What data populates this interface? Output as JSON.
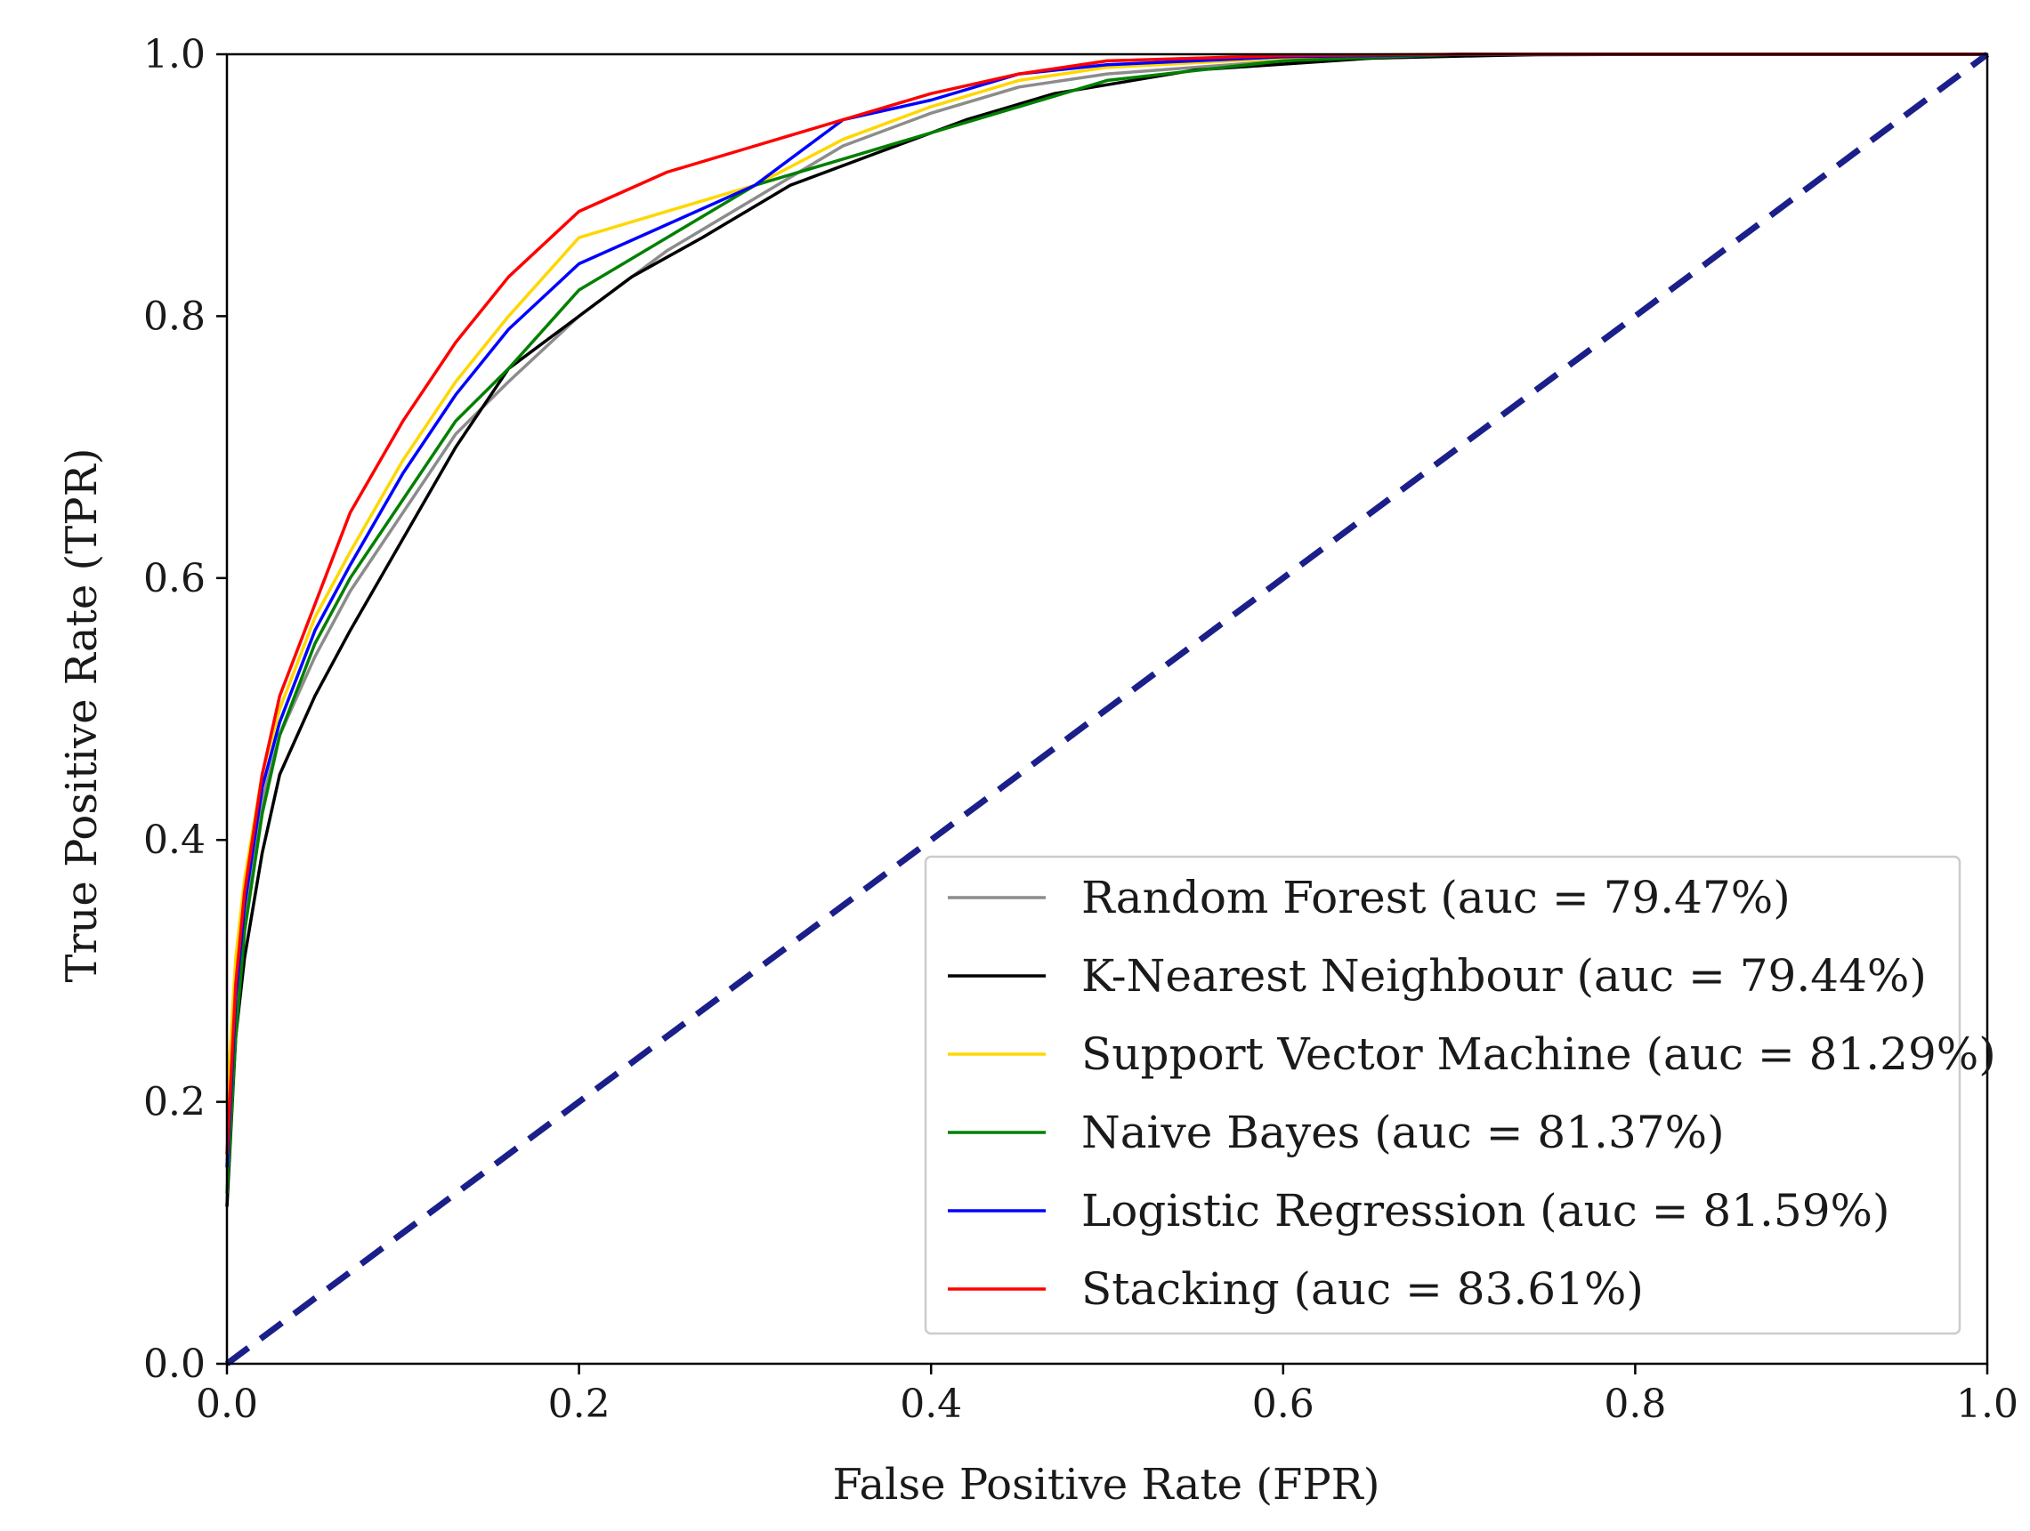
{
  "chart_data": {
    "type": "line",
    "title": "",
    "xlabel": "False Positive Rate (FPR)",
    "ylabel": "True Positive Rate (TPR)",
    "xlim": [
      0.0,
      1.0
    ],
    "ylim": [
      0.0,
      1.0
    ],
    "xticks": [
      "0.0",
      "0.2",
      "0.4",
      "0.6",
      "0.8",
      "1.0"
    ],
    "yticks": [
      "0.0",
      "0.2",
      "0.4",
      "0.6",
      "0.8",
      "1.0"
    ],
    "grid": false,
    "legend_position": "lower-right",
    "series": [
      {
        "name": "Random Forest (auc = 79.47%)",
        "color": "#8c8c8c",
        "x": [
          0,
          0.005,
          0.01,
          0.02,
          0.03,
          0.05,
          0.07,
          0.1,
          0.13,
          0.16,
          0.2,
          0.25,
          0.3,
          0.35,
          0.4,
          0.45,
          0.5,
          0.6,
          0.7,
          0.8,
          0.9,
          1.0
        ],
        "y": [
          0.12,
          0.28,
          0.34,
          0.43,
          0.48,
          0.54,
          0.59,
          0.65,
          0.71,
          0.75,
          0.8,
          0.85,
          0.89,
          0.93,
          0.955,
          0.975,
          0.985,
          0.995,
          0.999,
          1.0,
          1.0,
          1.0
        ]
      },
      {
        "name": "K-Nearest Neighbour (auc = 79.44%)",
        "color": "#000000",
        "x": [
          0,
          0.005,
          0.01,
          0.02,
          0.03,
          0.05,
          0.07,
          0.1,
          0.13,
          0.16,
          0.2,
          0.23,
          0.27,
          0.32,
          0.37,
          0.42,
          0.47,
          0.55,
          0.65,
          0.75,
          0.85,
          1.0
        ],
        "y": [
          0.12,
          0.25,
          0.31,
          0.39,
          0.45,
          0.51,
          0.56,
          0.63,
          0.7,
          0.76,
          0.8,
          0.83,
          0.86,
          0.9,
          0.925,
          0.95,
          0.97,
          0.988,
          0.997,
          1.0,
          1.0,
          1.0
        ]
      },
      {
        "name": "Support Vector Machine (auc = 81.29%)",
        "color": "#ffd700",
        "x": [
          0,
          0.005,
          0.01,
          0.02,
          0.03,
          0.05,
          0.07,
          0.1,
          0.13,
          0.16,
          0.2,
          0.25,
          0.3,
          0.35,
          0.4,
          0.45,
          0.5,
          0.6,
          0.7,
          0.8,
          0.9,
          1.0
        ],
        "y": [
          0.2,
          0.31,
          0.37,
          0.45,
          0.5,
          0.57,
          0.62,
          0.69,
          0.75,
          0.8,
          0.86,
          0.88,
          0.9,
          0.935,
          0.96,
          0.98,
          0.99,
          0.997,
          1.0,
          1.0,
          1.0,
          1.0
        ]
      },
      {
        "name": "Naive Bayes (auc = 81.37%)",
        "color": "#008000",
        "x": [
          0,
          0.005,
          0.01,
          0.02,
          0.03,
          0.05,
          0.07,
          0.1,
          0.13,
          0.16,
          0.2,
          0.25,
          0.3,
          0.35,
          0.4,
          0.45,
          0.5,
          0.6,
          0.7,
          0.8,
          0.9,
          1.0
        ],
        "y": [
          0.13,
          0.25,
          0.33,
          0.42,
          0.48,
          0.55,
          0.6,
          0.66,
          0.72,
          0.76,
          0.82,
          0.86,
          0.9,
          0.92,
          0.94,
          0.96,
          0.98,
          0.995,
          1.0,
          1.0,
          1.0,
          1.0
        ]
      },
      {
        "name": "Logistic Regression (auc = 81.59%)",
        "color": "#0000ff",
        "x": [
          0,
          0.005,
          0.01,
          0.02,
          0.03,
          0.05,
          0.07,
          0.1,
          0.13,
          0.16,
          0.2,
          0.25,
          0.3,
          0.35,
          0.4,
          0.45,
          0.5,
          0.6,
          0.7,
          0.8,
          0.9,
          1.0
        ],
        "y": [
          0.15,
          0.28,
          0.35,
          0.44,
          0.49,
          0.56,
          0.61,
          0.68,
          0.74,
          0.79,
          0.84,
          0.87,
          0.9,
          0.95,
          0.965,
          0.985,
          0.992,
          0.998,
          1.0,
          1.0,
          1.0,
          1.0
        ]
      },
      {
        "name": "Stacking (auc = 83.61%)",
        "color": "#ff0000",
        "x": [
          0,
          0.005,
          0.01,
          0.02,
          0.03,
          0.05,
          0.07,
          0.1,
          0.13,
          0.16,
          0.2,
          0.25,
          0.3,
          0.35,
          0.4,
          0.45,
          0.5,
          0.6,
          0.7,
          0.8,
          0.9,
          1.0
        ],
        "y": [
          0.16,
          0.29,
          0.36,
          0.45,
          0.51,
          0.58,
          0.65,
          0.72,
          0.78,
          0.83,
          0.88,
          0.91,
          0.93,
          0.95,
          0.97,
          0.985,
          0.995,
          0.999,
          1.0,
          1.0,
          1.0,
          1.0
        ]
      }
    ],
    "reference_line": {
      "x": [
        0,
        1
      ],
      "y": [
        0,
        1
      ],
      "color": "#1b1f8a",
      "style": "dashed"
    }
  }
}
